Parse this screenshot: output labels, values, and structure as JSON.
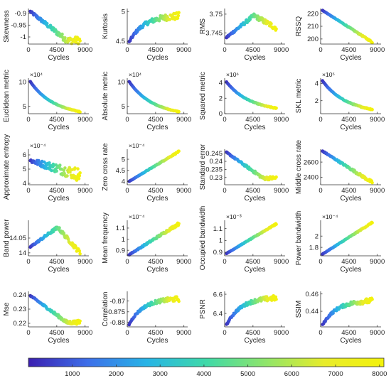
{
  "figure": {
    "colorbar": {
      "ticks": [
        "1000",
        "2000",
        "3000",
        "4000",
        "5000",
        "6000",
        "7000",
        "8000"
      ],
      "min": 0,
      "max": 8100,
      "colors": [
        "#3b1fb0",
        "#3d6fe9",
        "#27b4e6",
        "#3fd9a8",
        "#8fe56a",
        "#e8ec2a",
        "#f3f20c"
      ]
    }
  },
  "chart_data": [
    {
      "type": "scatter",
      "ylabel": "Skewness",
      "xlabel": "Cycles",
      "xticks": [
        "0",
        "4500",
        "9000"
      ],
      "xlim": [
        0,
        9600
      ],
      "yticks": [
        "-0.9",
        "-0.95",
        "-1"
      ],
      "ylim": [
        -1.03,
        -0.88
      ],
      "start": -0.893,
      "end": -1.015,
      "shape": "dip",
      "noise": 0.012
    },
    {
      "type": "scatter",
      "ylabel": "Kurtosis",
      "xlabel": "Cycles",
      "xticks": [
        "0",
        "4500",
        "9000"
      ],
      "xlim": [
        0,
        9600
      ],
      "yticks": [
        "5",
        "4.5"
      ],
      "ylim": [
        4.45,
        5.05
      ],
      "start": 4.48,
      "end": 4.92,
      "shape": "rise",
      "noise": 0.05
    },
    {
      "type": "scatter",
      "ylabel": "RMS",
      "xlabel": "Cycles",
      "xticks": [
        "0",
        "4500",
        "9000"
      ],
      "xlim": [
        0,
        9600
      ],
      "yticks": [
        "3.75",
        "3.745"
      ],
      "ylim": [
        3.742,
        3.7515
      ],
      "start": 3.7438,
      "end": 3.7463,
      "shape": "hump",
      "noise": 0.0006
    },
    {
      "type": "scatter",
      "ylabel": "RSSQ",
      "xlabel": "Cycles",
      "xticks": [
        "0",
        "4500",
        "9000"
      ],
      "xlim": [
        0,
        9600
      ],
      "yticks": [
        "220",
        "210",
        "200"
      ],
      "ylim": [
        196,
        224
      ],
      "start": 222.5,
      "end": 197.5,
      "shape": "linear",
      "noise": 0.4
    },
    {
      "type": "scatter",
      "ylabel": "Euclidean metric",
      "xlabel": "Cycles",
      "exponent": "×10⁴",
      "xticks": [
        "0",
        "4500",
        "9000"
      ],
      "xlim": [
        0,
        9600
      ],
      "yticks": [
        "10",
        "5"
      ],
      "ylim": [
        3.5,
        10.8
      ],
      "start": 10.1,
      "end": 3.9,
      "shape": "decay",
      "noise": 0.06
    },
    {
      "type": "scatter",
      "ylabel": "Absolute metric",
      "xlabel": "Cycles",
      "exponent": "×10⁴",
      "xticks": [
        "0",
        "4500",
        "9000"
      ],
      "xlim": [
        0,
        9600
      ],
      "yticks": [
        "10",
        "5"
      ],
      "ylim": [
        3.5,
        10.8
      ],
      "start": 10.1,
      "end": 3.9,
      "shape": "decay",
      "noise": 0.06
    },
    {
      "type": "scatter",
      "ylabel": "Squared metric",
      "xlabel": "Cycles",
      "exponent": "×10⁶",
      "xticks": [
        "0",
        "4500",
        "9000"
      ],
      "xlim": [
        0,
        9600
      ],
      "yticks": [
        "4",
        "2",
        "0"
      ],
      "ylim": [
        0,
        4.6
      ],
      "start": 4.1,
      "end": 0.7,
      "shape": "decay",
      "noise": 0.05
    },
    {
      "type": "scatter",
      "ylabel": "SKL metric",
      "xlabel": "Cycles",
      "exponent": "×10⁵",
      "xticks": [
        "0",
        "4500",
        "9000"
      ],
      "xlim": [
        0,
        9600
      ],
      "yticks": [
        "4",
        "2"
      ],
      "ylim": [
        0.5,
        4.6
      ],
      "start": 4.3,
      "end": 1.0,
      "shape": "decay",
      "noise": 0.05
    },
    {
      "type": "scatter",
      "ylabel": "Approximate entropy",
      "xlabel": "Cycles",
      "exponent": "×10⁻⁴",
      "xticks": [
        "0",
        "4500",
        "9000"
      ],
      "xlim": [
        0,
        9600
      ],
      "yticks": [
        "6",
        "5",
        "4"
      ],
      "ylim": [
        3.9,
        6.4
      ],
      "start": 5.6,
      "end": 4.6,
      "shape": "linear",
      "noise": 0.38
    },
    {
      "type": "scatter",
      "ylabel": "Zero cross rate",
      "xlabel": "Cycles",
      "exponent": "×10⁻⁴",
      "xticks": [
        "0",
        "4500",
        "9000"
      ],
      "xlim": [
        0,
        9600
      ],
      "yticks": [
        "5",
        "4.5",
        "4"
      ],
      "ylim": [
        3.85,
        5.45
      ],
      "start": 4.0,
      "end": 5.35,
      "shape": "linear",
      "noise": 0.02
    },
    {
      "type": "scatter",
      "ylabel": "Standard error",
      "xlabel": "Cycles",
      "xticks": [
        "0",
        "4500",
        "9000"
      ],
      "xlim": [
        0,
        9600
      ],
      "yticks": [
        "0.245",
        "0.24",
        "0.235",
        "0.23"
      ],
      "ylim": [
        0.2255,
        0.2475
      ],
      "start": 0.2455,
      "end": 0.2295,
      "shape": "dip",
      "noise": 0.0009
    },
    {
      "type": "scatter",
      "ylabel": "Middle cross rate",
      "xlabel": "Cycles",
      "xticks": [
        "0",
        "4500",
        "9000"
      ],
      "xlim": [
        0,
        9600
      ],
      "yticks": [
        "2600",
        "2400"
      ],
      "ylim": [
        2300,
        2770
      ],
      "start": 2745,
      "end": 2330,
      "shape": "linear",
      "noise": 15
    },
    {
      "type": "scatter",
      "ylabel": "Band power",
      "xlabel": "Cycles",
      "xticks": [
        "0",
        "4500",
        "9000"
      ],
      "xlim": [
        0,
        9600
      ],
      "yticks": [
        "14.05",
        "14"
      ],
      "ylim": [
        13.99,
        14.11
      ],
      "start": 14.02,
      "end": 14.0,
      "shape": "hump",
      "noise": 0.006
    },
    {
      "type": "scatter",
      "ylabel": "Mean frequency",
      "xlabel": "Cycles",
      "exponent": "×10⁻⁴",
      "xticks": [
        "0",
        "4500",
        "9000"
      ],
      "xlim": [
        0,
        9600
      ],
      "yticks": [
        "1.1",
        "1",
        "0.9"
      ],
      "ylim": [
        0.85,
        1.17
      ],
      "start": 0.86,
      "end": 1.14,
      "shape": "linear",
      "noise": 0.01
    },
    {
      "type": "scatter",
      "ylabel": "Occupied bandwidth",
      "xlabel": "Cycles",
      "exponent": "×10⁻³",
      "xticks": [
        "0",
        "4500",
        "9000"
      ],
      "xlim": [
        0,
        9600
      ],
      "yticks": [
        "1.1",
        "1",
        "0.9"
      ],
      "ylim": [
        0.87,
        1.17
      ],
      "start": 0.89,
      "end": 1.14,
      "shape": "linear",
      "noise": 0.004
    },
    {
      "type": "scatter",
      "ylabel": "Power bandwidth",
      "xlabel": "Cycles",
      "exponent": "×10⁻⁴",
      "xticks": [
        "0",
        "4500",
        "9000"
      ],
      "xlim": [
        0,
        9600
      ],
      "yticks": [
        "2",
        "1.8"
      ],
      "ylim": [
        1.65,
        2.28
      ],
      "start": 1.68,
      "end": 2.24,
      "shape": "linear",
      "noise": 0.008
    },
    {
      "type": "scatter",
      "ylabel": "Mse",
      "xlabel": "Cycles",
      "xticks": [
        "0",
        "4500",
        "9000"
      ],
      "xlim": [
        0,
        9600
      ],
      "yticks": [
        "0.24",
        "0.23",
        "0.22"
      ],
      "ylim": [
        0.2175,
        0.2425
      ],
      "start": 0.2395,
      "end": 0.2205,
      "shape": "dip",
      "noise": 0.0011
    },
    {
      "type": "scatter",
      "ylabel": "Correlation",
      "xlabel": "Cycles",
      "xticks": [
        "0",
        "4500",
        "9000"
      ],
      "xlim": [
        0,
        9600
      ],
      "yticks": [
        "-0.87",
        "-0.875",
        "-0.88"
      ],
      "ylim": [
        -0.882,
        -0.8655
      ],
      "start": -0.8808,
      "end": -0.869,
      "shape": "rise",
      "noise": 0.0009
    },
    {
      "type": "scatter",
      "ylabel": "PSNR",
      "xlabel": "Cycles",
      "xticks": [
        "0",
        "4500",
        "9000"
      ],
      "xlim": [
        0,
        9600
      ],
      "yticks": [
        "6.6",
        "6.4"
      ],
      "ylim": [
        6.26,
        6.63
      ],
      "start": 6.28,
      "end": 6.56,
      "shape": "rise",
      "noise": 0.022
    },
    {
      "type": "scatter",
      "ylabel": "SSIM",
      "xlabel": "Cycles",
      "xticks": [
        "0",
        "4500",
        "9000"
      ],
      "xlim": [
        0,
        9600
      ],
      "yticks": [
        "0.46",
        "0.44"
      ],
      "ylim": [
        0.422,
        0.463
      ],
      "start": 0.424,
      "end": 0.452,
      "shape": "rise",
      "noise": 0.0025
    }
  ]
}
